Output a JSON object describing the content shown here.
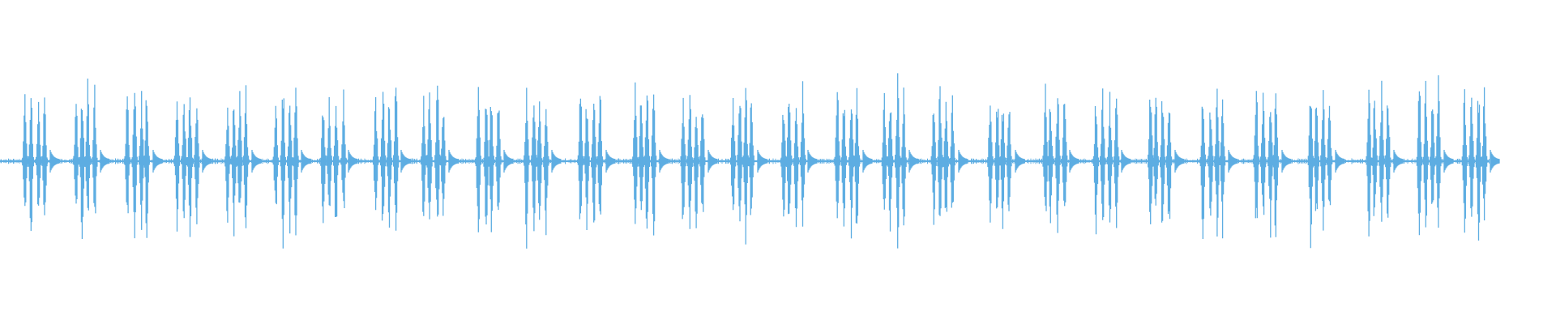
{
  "waveform": {
    "color": "#5dade2",
    "background": "#ffffff",
    "burst_count": 29
  }
}
